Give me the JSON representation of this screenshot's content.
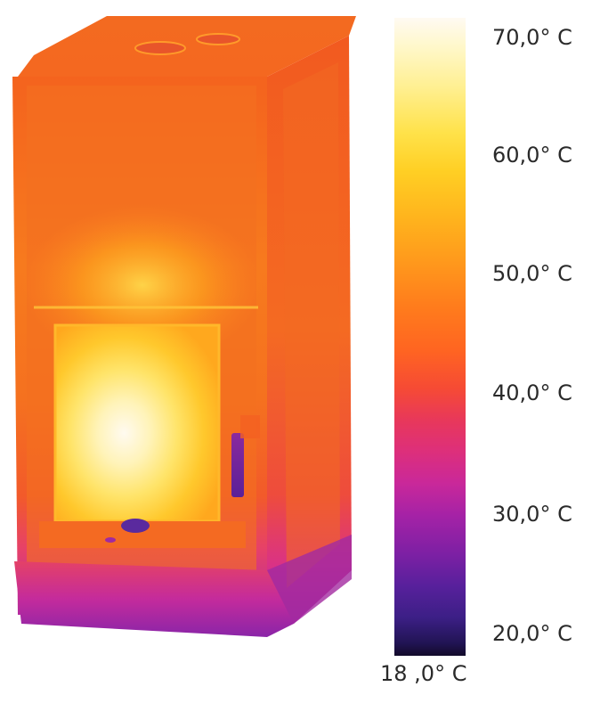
{
  "scale": {
    "labels": [
      "70,0° C",
      "60,0° C",
      "50,0° C",
      "40,0° C",
      "30,0° C",
      "20,0° C"
    ],
    "min_label": "18 ,0° C",
    "colors": {
      "hot": "#fffaf2",
      "yellow": "#ffe24a",
      "orange": "#ff7d1c",
      "red": "#f64b34",
      "magenta": "#dd2f7b",
      "purple": "#7d20a4",
      "cold": "#120a2a"
    }
  },
  "image": {
    "subject": "thermal-image-stove"
  }
}
